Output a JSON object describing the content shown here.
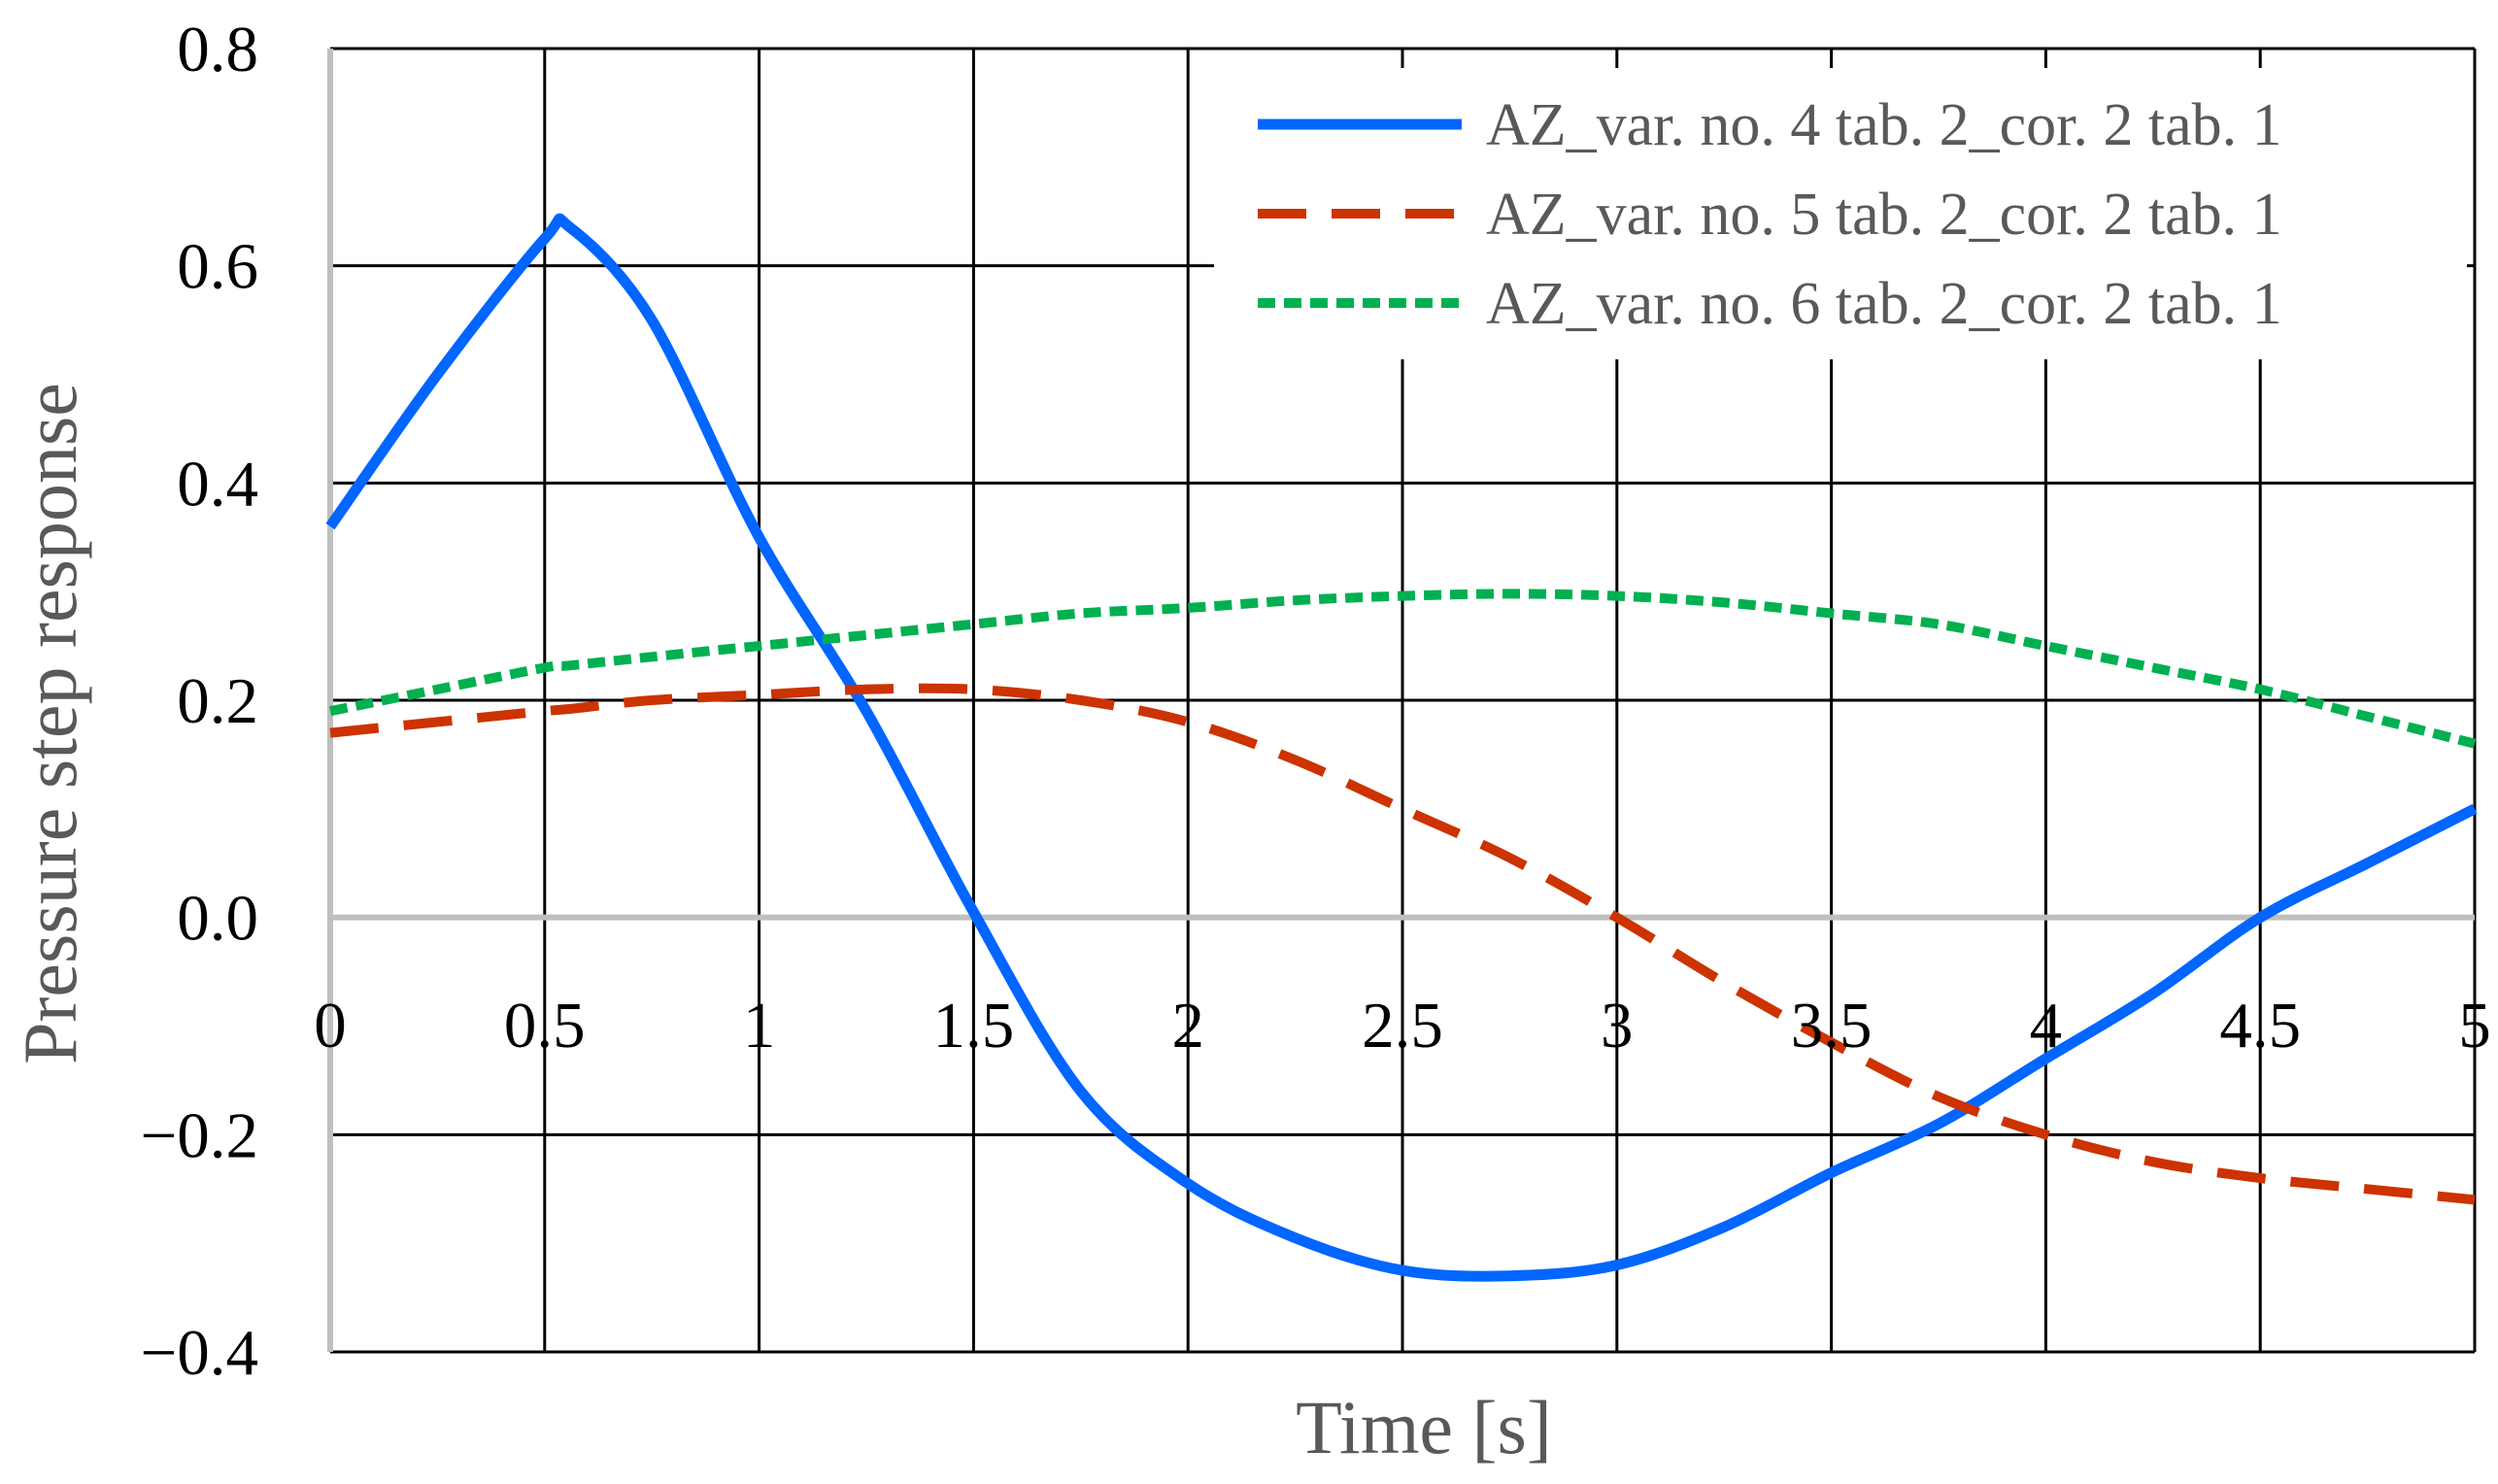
{
  "chart_data": {
    "type": "line",
    "title": "",
    "xlabel": "Time [s]",
    "ylabel": "Pressure step response",
    "xlim": [
      0,
      5
    ],
    "ylim": [
      -0.4,
      0.8
    ],
    "xticks": [
      "0",
      "0.5",
      "1",
      "1.5",
      "2",
      "2.5",
      "3",
      "3.5",
      "4",
      "4.5",
      "5"
    ],
    "yticks": [
      "−0.4",
      "−0.2",
      "0.0",
      "0.2",
      "0.4",
      "0.6",
      "0.8"
    ],
    "grid": true,
    "legend_position": "top-right",
    "x": [
      0,
      0.25,
      0.5,
      0.56,
      0.75,
      1,
      1.25,
      1.5,
      1.75,
      2,
      2.25,
      2.5,
      2.75,
      3,
      3.25,
      3.5,
      3.75,
      4,
      4.25,
      4.5,
      4.75,
      5
    ],
    "series": [
      {
        "name": "AZ_var. no. 4 tab. 2_cor. 2 tab. 1",
        "color": "#0066ff",
        "style": "solid",
        "values": [
          0.36,
          0.5,
          0.625,
          0.635,
          0.55,
          0.35,
          0.19,
          0.005,
          -0.16,
          -0.245,
          -0.295,
          -0.325,
          -0.33,
          -0.32,
          -0.285,
          -0.235,
          -0.19,
          -0.13,
          -0.07,
          0.0,
          0.05,
          0.1
        ]
      },
      {
        "name": "AZ_var. no. 5 tab. 2_cor. 2 tab. 1",
        "color": "#cc3300",
        "style": "dashed",
        "values": [
          0.17,
          0.18,
          0.19,
          0.192,
          0.2,
          0.205,
          0.21,
          0.21,
          0.2,
          0.18,
          0.145,
          0.1,
          0.055,
          0.0,
          -0.06,
          -0.115,
          -0.165,
          -0.2,
          -0.225,
          -0.24,
          -0.25,
          -0.26
        ]
      },
      {
        "name": "AZ_var. no. 6 tab. 2_cor. 2 tab. 1",
        "color": "#00b050",
        "style": "dotted",
        "values": [
          0.19,
          0.21,
          0.23,
          0.232,
          0.24,
          0.25,
          0.26,
          0.27,
          0.28,
          0.285,
          0.292,
          0.296,
          0.298,
          0.296,
          0.29,
          0.28,
          0.27,
          0.25,
          0.23,
          0.21,
          0.185,
          0.16
        ]
      }
    ]
  }
}
